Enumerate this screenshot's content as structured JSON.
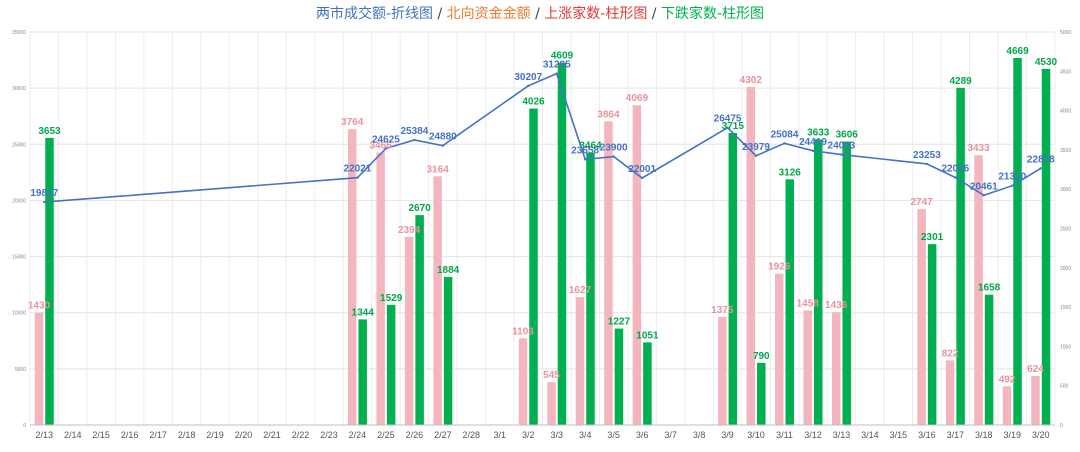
{
  "title": {
    "parts": [
      {
        "text": "两市成交额-折线图",
        "color": "#4472C4"
      },
      {
        "text": "北向资金金额",
        "color": "#ED7D31"
      },
      {
        "text": "上涨家数-柱形图",
        "color": "#E53935"
      },
      {
        "text": "下跌家数-柱形图",
        "color": "#00B050"
      }
    ],
    "separator": " / "
  },
  "chart_data": {
    "type": "bar",
    "combo": "bar+line",
    "categories": [
      "2/13",
      "2/14",
      "2/15",
      "2/16",
      "2/17",
      "2/18",
      "2/19",
      "2/20",
      "2/21",
      "2/22",
      "2/23",
      "2/24",
      "2/25",
      "2/26",
      "2/27",
      "2/28",
      "3/1",
      "3/2",
      "3/3",
      "3/4",
      "3/5",
      "3/6",
      "3/7",
      "3/8",
      "3/9",
      "3/10",
      "3/11",
      "3/12",
      "3/13",
      "3/14",
      "3/15",
      "3/16",
      "3/17",
      "3/18",
      "3/19",
      "3/20"
    ],
    "left_axis": {
      "min": 0,
      "max": 35000,
      "ticks": [
        "0",
        "5000",
        "10000",
        "15000",
        "20000",
        "25000",
        "30000",
        "35000"
      ]
    },
    "right_axis": {
      "min": 0,
      "max": 5000,
      "ticks": [
        "0",
        "500",
        "1000",
        "1500",
        "2000",
        "2500",
        "3000",
        "3500",
        "4000",
        "4500",
        "5000"
      ]
    },
    "grid": true,
    "series": [
      {
        "key": "up",
        "type": "bar",
        "axis": "right",
        "color": "#F4B6BE",
        "label_color": "#E8949E",
        "values": [
          1430,
          null,
          null,
          null,
          null,
          null,
          null,
          null,
          null,
          null,
          null,
          3764,
          3466,
          2394,
          3164,
          null,
          null,
          1103,
          545,
          1627,
          3864,
          4069,
          null,
          null,
          1375,
          4302,
          1926,
          1458,
          1436,
          null,
          null,
          2747,
          822,
          3433,
          492,
          624
        ]
      },
      {
        "key": "down",
        "type": "bar",
        "axis": "right",
        "color": "#00B050",
        "label_color": "#00A84A",
        "values": [
          3653,
          null,
          null,
          null,
          null,
          null,
          null,
          null,
          null,
          null,
          null,
          1344,
          1529,
          2670,
          1884,
          null,
          null,
          4026,
          4609,
          3464,
          1227,
          1051,
          null,
          null,
          3715,
          790,
          3126,
          3633,
          3606,
          null,
          null,
          2301,
          4289,
          1658,
          4669,
          4530
        ]
      },
      {
        "key": "turnover",
        "type": "line",
        "axis": "left",
        "color": "#4472C4",
        "label_color": "#4472C4",
        "values": [
          19847,
          null,
          null,
          null,
          null,
          null,
          null,
          null,
          null,
          null,
          null,
          22021,
          24625,
          25384,
          24880,
          null,
          null,
          30207,
          31295,
          23658,
          23900,
          22001,
          null,
          null,
          26475,
          23979,
          25084,
          24419,
          24083,
          null,
          null,
          23253,
          22046,
          20461,
          21310,
          22858
        ]
      }
    ]
  }
}
